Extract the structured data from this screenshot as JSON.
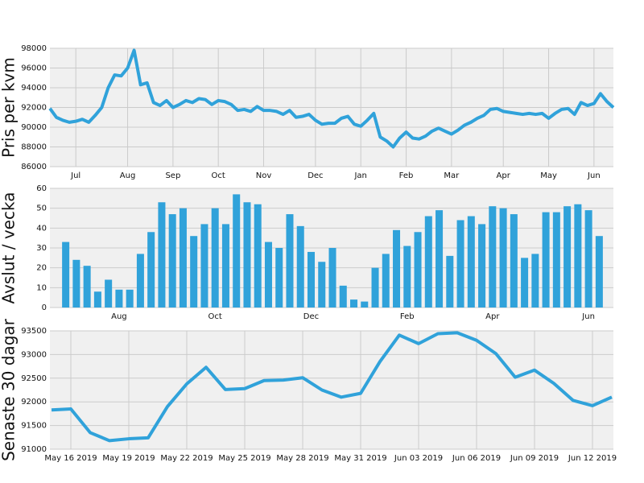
{
  "chart_data": [
    {
      "type": "line",
      "ylabel": "Pris per kvm",
      "color": "#30a2da",
      "categories": [
        null,
        null,
        null,
        null,
        "Jul",
        null,
        null,
        null,
        null,
        null,
        null,
        null,
        "Aug",
        null,
        null,
        null,
        null,
        null,
        null,
        "Sep",
        null,
        null,
        null,
        null,
        null,
        null,
        "Oct",
        null,
        null,
        null,
        null,
        null,
        null,
        "Nov",
        null,
        null,
        null,
        null,
        null,
        null,
        null,
        "Dec",
        null,
        null,
        null,
        null,
        null,
        null,
        "Jan",
        null,
        null,
        null,
        null,
        null,
        null,
        "Feb",
        null,
        null,
        null,
        null,
        null,
        null,
        "Mar",
        null,
        null,
        null,
        null,
        null,
        null,
        null,
        "Apr",
        null,
        null,
        null,
        null,
        null,
        null,
        "May",
        null,
        null,
        null,
        null,
        null,
        null,
        "Jun",
        null,
        null,
        null
      ],
      "values": [
        91900,
        91000,
        90700,
        90500,
        90600,
        90800,
        90500,
        91200,
        92000,
        94000,
        95300,
        95200,
        96000,
        97800,
        94300,
        94500,
        92500,
        92200,
        92700,
        92000,
        92300,
        92700,
        92500,
        92900,
        92800,
        92300,
        92700,
        92600,
        92300,
        91700,
        91800,
        91600,
        92100,
        91700,
        91700,
        91600,
        91300,
        91700,
        91000,
        91100,
        91300,
        90700,
        90300,
        90400,
        90400,
        90900,
        91100,
        90300,
        90100,
        90700,
        91400,
        89000,
        88600,
        88000,
        88900,
        89500,
        88900,
        88800,
        89100,
        89600,
        89900,
        89600,
        89300,
        89700,
        90200,
        90500,
        90900,
        91200,
        91800,
        91900,
        91600,
        91500,
        91400,
        91300,
        91400,
        91300,
        91400,
        90900,
        91400,
        91800,
        91900,
        91300,
        92500,
        92200,
        92400,
        93400,
        92600,
        92000
      ],
      "ylim": [
        86000,
        98000
      ],
      "yticks": [
        86000,
        88000,
        90000,
        92000,
        94000,
        96000,
        98000
      ],
      "grid": true
    },
    {
      "type": "bar",
      "ylabel": "Avslut / vecka",
      "color": "#30a2da",
      "categories": [
        null,
        null,
        null,
        null,
        null,
        "Aug",
        null,
        null,
        null,
        null,
        null,
        null,
        null,
        null,
        "Oct",
        null,
        null,
        null,
        null,
        null,
        null,
        null,
        null,
        "Dec",
        null,
        null,
        null,
        null,
        null,
        null,
        null,
        null,
        "Feb",
        null,
        null,
        null,
        null,
        null,
        null,
        null,
        "Apr",
        null,
        null,
        null,
        null,
        null,
        null,
        null,
        null,
        "Jun",
        null
      ],
      "values": [
        33,
        24,
        21,
        8,
        14,
        9,
        9,
        27,
        38,
        53,
        47,
        50,
        36,
        42,
        50,
        42,
        57,
        53,
        52,
        33,
        30,
        47,
        41,
        28,
        23,
        30,
        11,
        4,
        3,
        20,
        27,
        39,
        31,
        38,
        46,
        49,
        26,
        44,
        46,
        42,
        51,
        50,
        47,
        25,
        27,
        48,
        48,
        51,
        52,
        49,
        36
      ],
      "ylim": [
        0,
        60
      ],
      "yticks": [
        0,
        10,
        20,
        30,
        40,
        50,
        60
      ],
      "grid": true
    },
    {
      "type": "line",
      "ylabel": "Senaste 30 dagar",
      "color": "#30a2da",
      "x": [
        "2019-05-15",
        "2019-05-16",
        "2019-05-17",
        "2019-05-18",
        "2019-05-19",
        "2019-05-20",
        "2019-05-21",
        "2019-05-22",
        "2019-05-23",
        "2019-05-24",
        "2019-05-25",
        "2019-05-26",
        "2019-05-27",
        "2019-05-28",
        "2019-05-29",
        "2019-05-30",
        "2019-05-31",
        "2019-06-01",
        "2019-06-02",
        "2019-06-03",
        "2019-06-04",
        "2019-06-05",
        "2019-06-06",
        "2019-06-07",
        "2019-06-08",
        "2019-06-09",
        "2019-06-10",
        "2019-06-11",
        "2019-06-12",
        "2019-06-13"
      ],
      "values": [
        91830,
        91850,
        91350,
        91180,
        91220,
        91240,
        91900,
        92380,
        92730,
        92260,
        92280,
        92450,
        92460,
        92510,
        92250,
        92100,
        92180,
        92850,
        93410,
        93230,
        93440,
        93460,
        93300,
        93020,
        92520,
        92670,
        92390,
        92030,
        91920,
        92100
      ],
      "xlim": [
        "2019-05-15",
        "2019-06-13"
      ],
      "xticks": [
        {
          "value": "2019-05-16",
          "label": "May 16 2019"
        },
        {
          "value": "2019-05-19",
          "label": "May 19 2019"
        },
        {
          "value": "2019-05-22",
          "label": "May 22 2019"
        },
        {
          "value": "2019-05-25",
          "label": "May 25 2019"
        },
        {
          "value": "2019-05-28",
          "label": "May 28 2019"
        },
        {
          "value": "2019-05-31",
          "label": "May 31 2019"
        },
        {
          "value": "2019-06-03",
          "label": "Jun 03 2019"
        },
        {
          "value": "2019-06-06",
          "label": "Jun 06 2019"
        },
        {
          "value": "2019-06-09",
          "label": "Jun 09 2019"
        },
        {
          "value": "2019-06-12",
          "label": "Jun 12 2019"
        }
      ],
      "ylim": [
        91000,
        93500
      ],
      "yticks": [
        91000,
        91500,
        92000,
        92500,
        93000,
        93500
      ],
      "grid": true
    }
  ]
}
